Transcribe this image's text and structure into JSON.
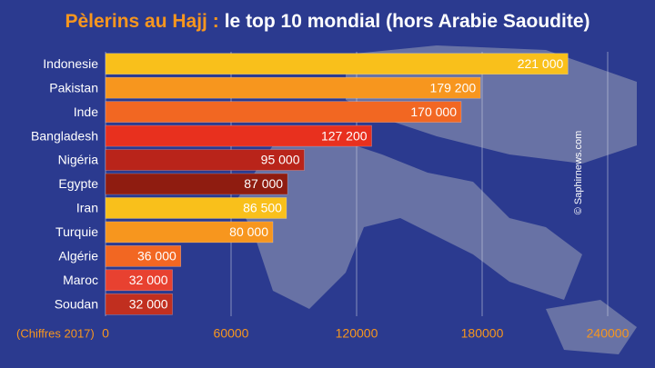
{
  "chart_data": {
    "type": "hbar",
    "title": {
      "highlight": "Pèlerins au Hajj :",
      "rest": "le top 10 mondial (hors Arabie Saoudite)"
    },
    "note": "(Chiffres 2017)",
    "watermark": "© Saphirnews.com",
    "categories": [
      "Indonesie",
      "Pakistan",
      "Inde",
      "Bangladesh",
      "Nigéria",
      "Egypte",
      "Iran",
      "Turquie",
      "Algérie",
      "Maroc",
      "Soudan"
    ],
    "values": [
      221000,
      179200,
      170000,
      127200,
      95000,
      87000,
      86500,
      80000,
      36000,
      32000,
      32000
    ],
    "value_labels": [
      "221 000",
      "179 200",
      "170 000",
      "127 200",
      "95 000",
      "87 000",
      "86 500",
      "80 000",
      "36 000",
      "32 000",
      "32 000"
    ],
    "colors": [
      "#f9c01b",
      "#f7961e",
      "#f26722",
      "#e8301e",
      "#b9241a",
      "#8f1c10",
      "#f9c01b",
      "#f7961e",
      "#f26722",
      "#e84130",
      "#c12f1f"
    ],
    "xlim": [
      0,
      240000
    ],
    "xticks": [
      0,
      60000,
      120000,
      180000,
      240000
    ],
    "grid": true
  }
}
